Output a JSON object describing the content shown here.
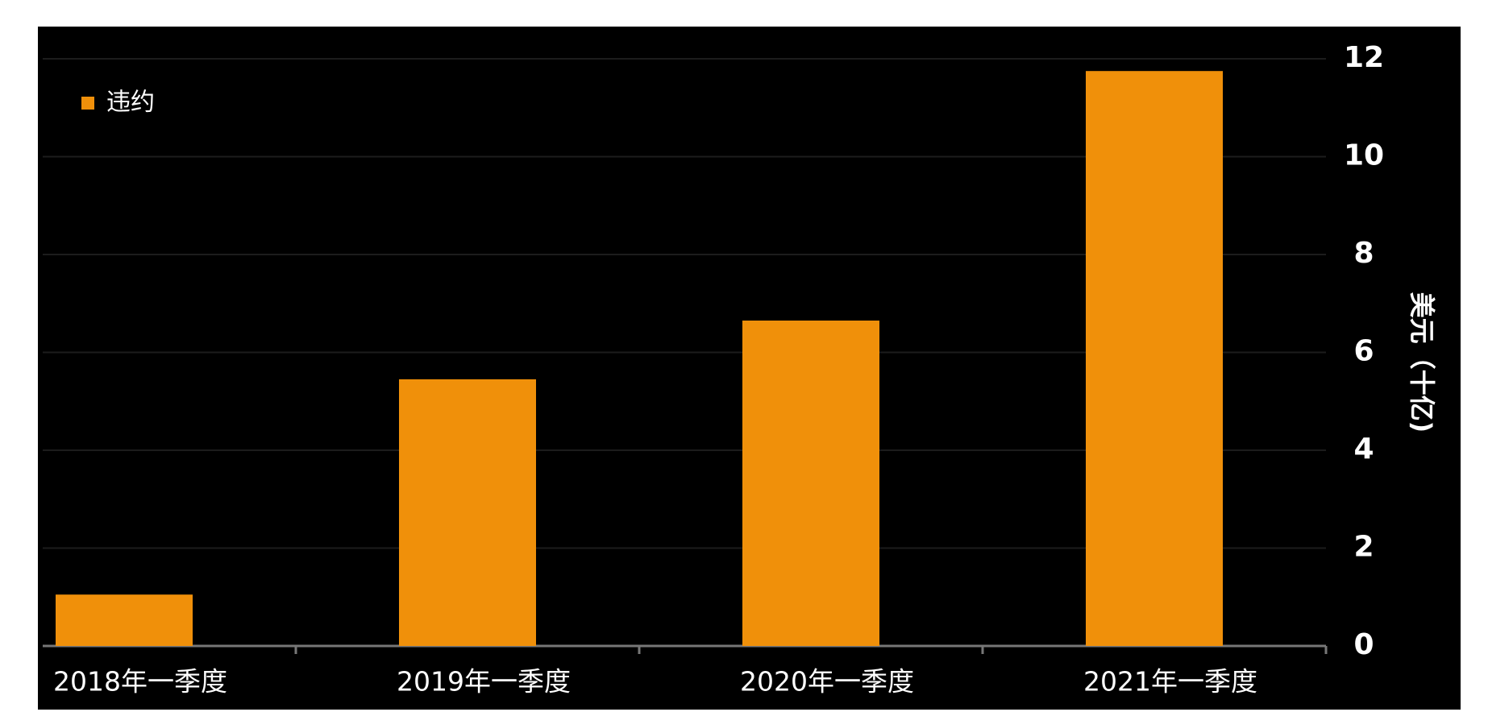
{
  "chart_data": {
    "type": "bar",
    "y_axis_label": "美元（十亿)",
    "categories": [
      "2018年一季度",
      "2019年一季度",
      "2020年一季度",
      "2021年一季度"
    ],
    "series": [
      {
        "name": "违约",
        "color": "#f0900a",
        "values": [
          1.05,
          5.45,
          6.65,
          11.75
        ]
      }
    ],
    "ylim": [
      0,
      12
    ],
    "yticks": [
      0,
      2,
      4,
      6,
      8,
      10,
      12
    ],
    "grid": true,
    "legend": "upper left",
    "background": "#000000"
  }
}
